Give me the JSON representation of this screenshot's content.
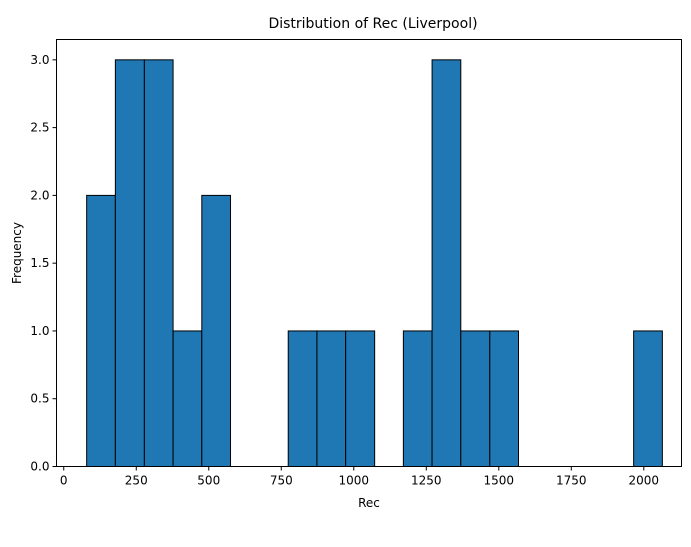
{
  "chart_data": {
    "type": "bar",
    "title": "Distribution of Rec (Liverpool)",
    "xlabel": "Rec",
    "ylabel": "Frequency",
    "bar_color": "#1f77b4",
    "edge_color": "#000000",
    "xlim": [
      -25,
      2130
    ],
    "ylim": [
      0,
      3.15
    ],
    "xticks": [
      0,
      250,
      500,
      750,
      1000,
      1250,
      1500,
      1750,
      2000
    ],
    "xtick_labels": [
      "0",
      "250",
      "500",
      "750",
      "1000",
      "1250",
      "1500",
      "1750",
      "2000"
    ],
    "yticks": [
      0,
      0.5,
      1.0,
      1.5,
      2.0,
      2.5,
      3.0
    ],
    "ytick_labels": [
      "0.0",
      "0.5",
      "1.0",
      "1.5",
      "2.0",
      "2.5",
      "3.0"
    ],
    "bins": [
      {
        "x0": 79,
        "x1": 178,
        "count": 2
      },
      {
        "x0": 178,
        "x1": 278,
        "count": 3
      },
      {
        "x0": 278,
        "x1": 377,
        "count": 3
      },
      {
        "x0": 377,
        "x1": 476,
        "count": 1
      },
      {
        "x0": 476,
        "x1": 575,
        "count": 2
      },
      {
        "x0": 575,
        "x1": 675,
        "count": 0
      },
      {
        "x0": 675,
        "x1": 774,
        "count": 0
      },
      {
        "x0": 774,
        "x1": 873,
        "count": 1
      },
      {
        "x0": 873,
        "x1": 972,
        "count": 1
      },
      {
        "x0": 972,
        "x1": 1072,
        "count": 1
      },
      {
        "x0": 1072,
        "x1": 1171,
        "count": 0
      },
      {
        "x0": 1171,
        "x1": 1270,
        "count": 1
      },
      {
        "x0": 1270,
        "x1": 1369,
        "count": 3
      },
      {
        "x0": 1369,
        "x1": 1469,
        "count": 1
      },
      {
        "x0": 1469,
        "x1": 1568,
        "count": 1
      },
      {
        "x0": 1568,
        "x1": 1667,
        "count": 0
      },
      {
        "x0": 1667,
        "x1": 1766,
        "count": 0
      },
      {
        "x0": 1766,
        "x1": 1866,
        "count": 0
      },
      {
        "x0": 1866,
        "x1": 1965,
        "count": 0
      },
      {
        "x0": 1965,
        "x1": 2064,
        "count": 1
      }
    ],
    "grid": false,
    "legend": "none"
  }
}
